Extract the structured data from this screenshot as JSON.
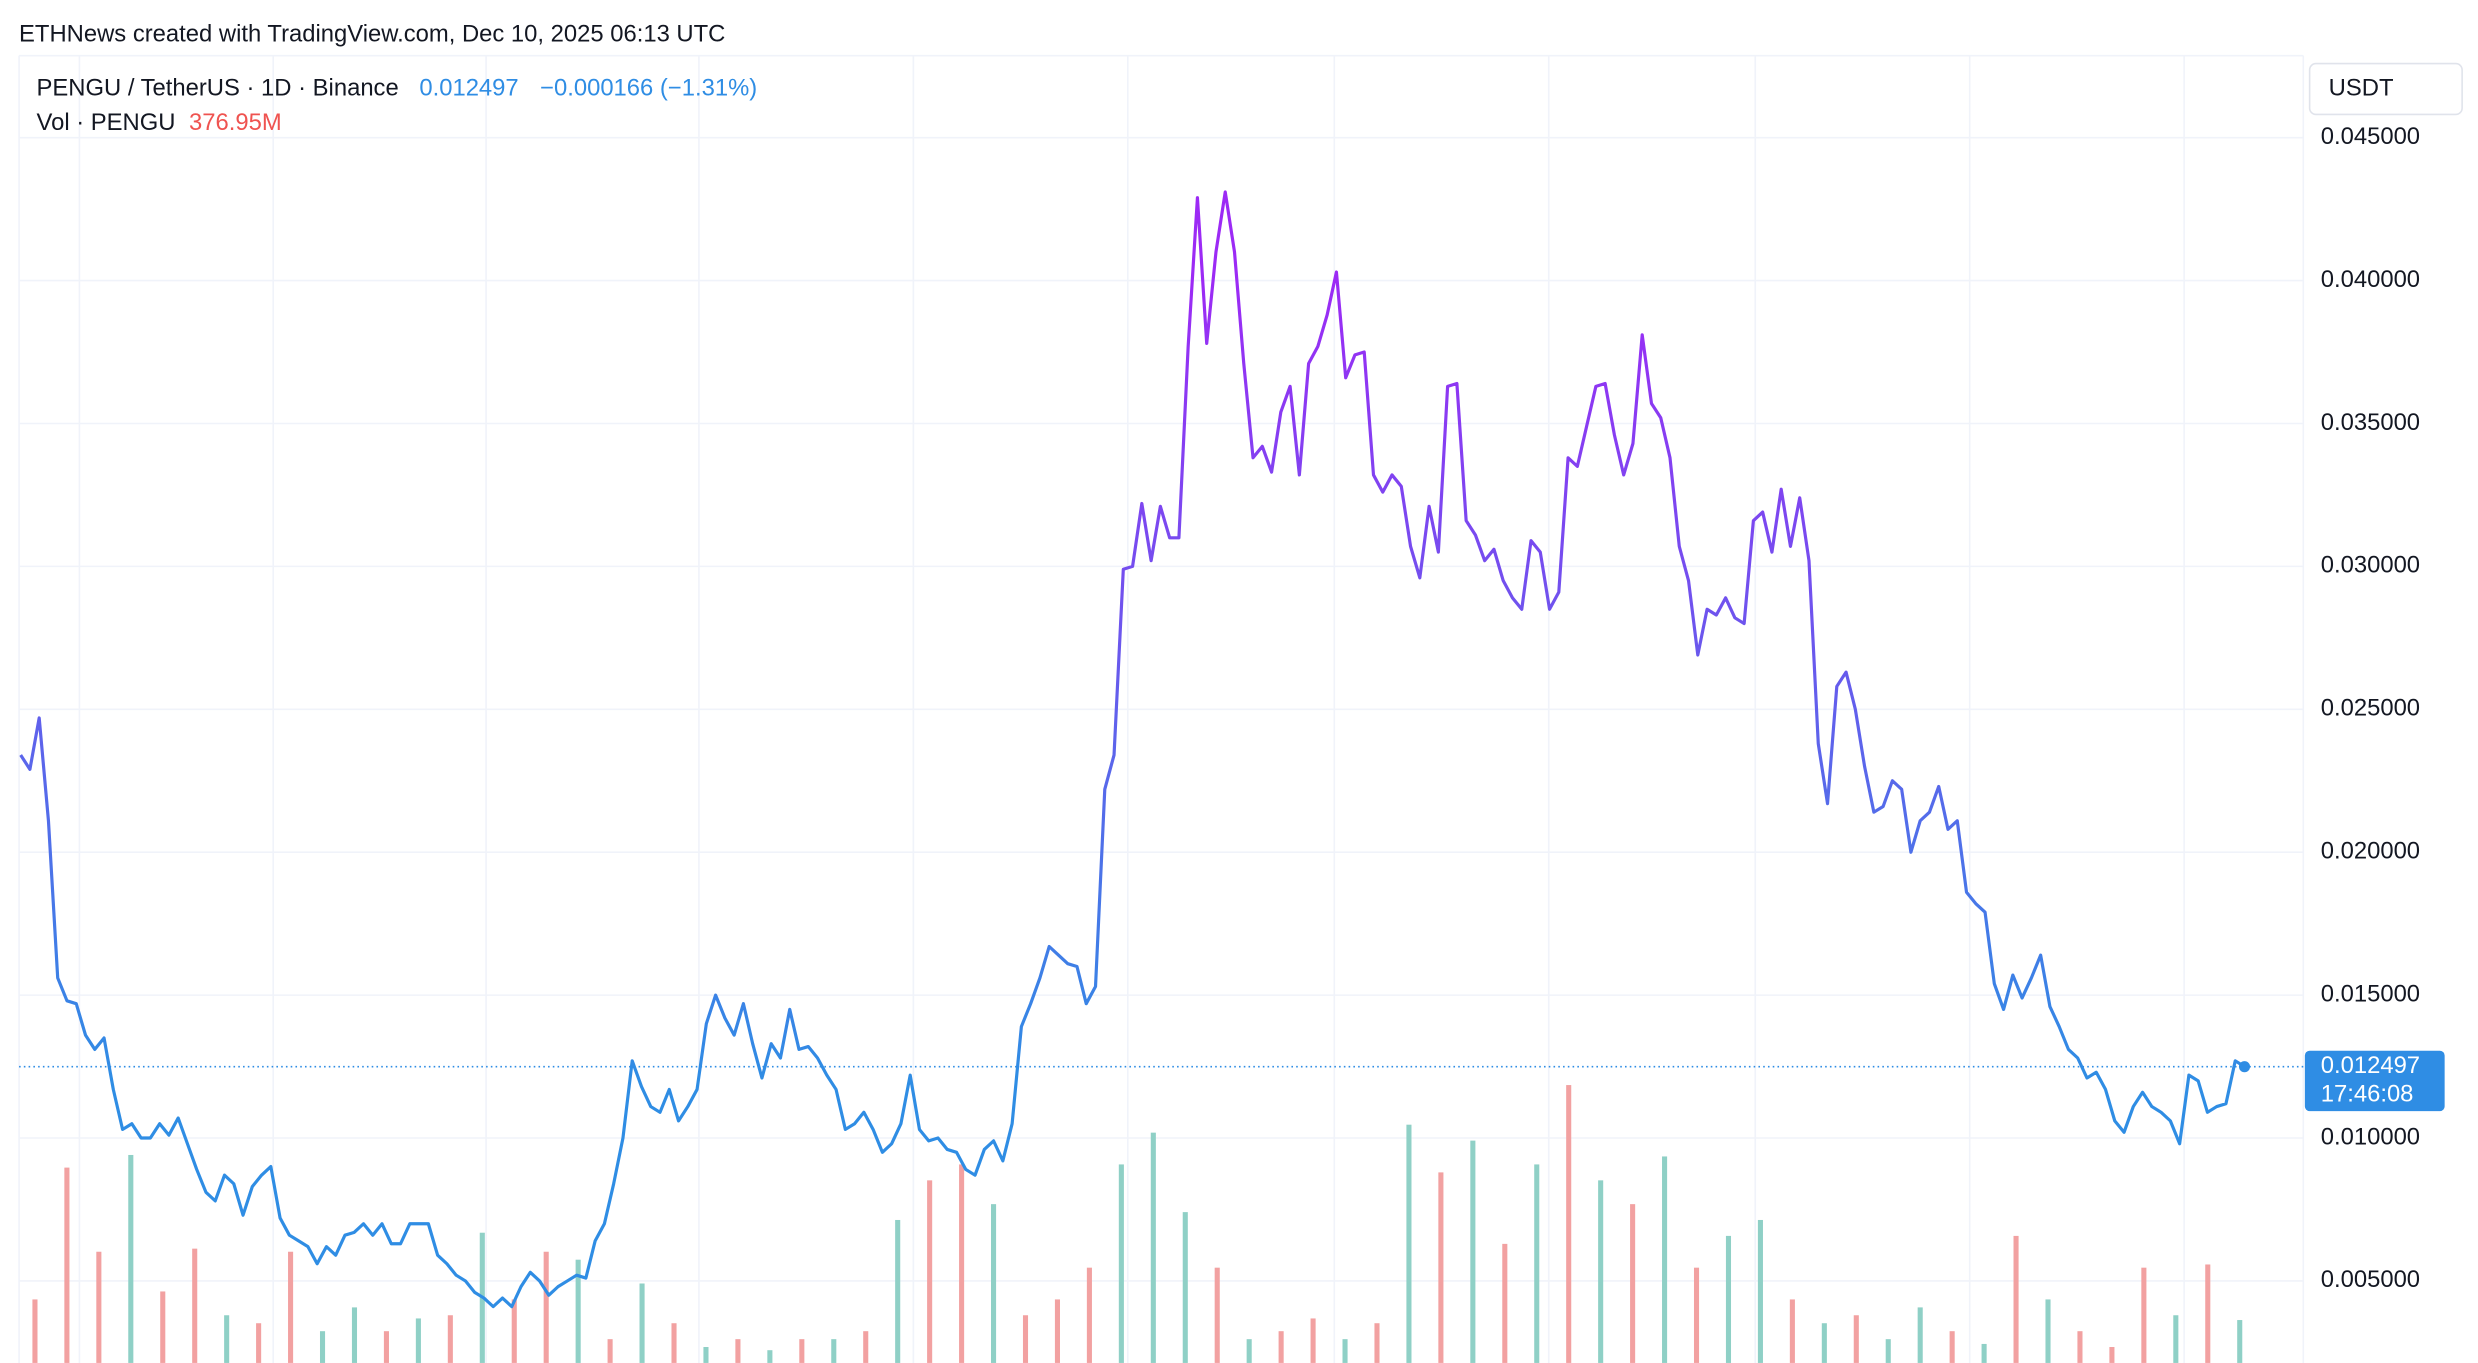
{
  "chart_data": {
    "type": "line",
    "credit": "ETHNews created with TradingView.com, Dec 10, 2025 06:13 UTC",
    "symbol": "PENGU / TetherUS · 1D · Binance",
    "last_price_label": "0.012497",
    "change_label": "−0.000166 (−1.31%)",
    "volume_title": "Vol · PENGU",
    "volume_label": "376.95M",
    "currency": "USDT",
    "countdown": "17:46:08",
    "line_colors": [
      "#2f8de4",
      "#9c2af5"
    ],
    "up_color": "#8fd0c6",
    "down_color": "#f2a1a1",
    "grid": true,
    "ylim": [
      0.00213,
      0.04787
    ],
    "yticks": [
      {
        "value": 0.005,
        "label": "0.005000"
      },
      {
        "value": 0.01,
        "label": "0.010000"
      },
      {
        "value": 0.015,
        "label": "0.015000"
      },
      {
        "value": 0.02,
        "label": "0.020000"
      },
      {
        "value": 0.025,
        "label": "0.025000"
      },
      {
        "value": 0.03,
        "label": "0.030000"
      },
      {
        "value": 0.035,
        "label": "0.035000"
      },
      {
        "value": 0.04,
        "label": "0.040000"
      },
      {
        "value": 0.045,
        "label": "0.045000"
      }
    ],
    "series": [
      {
        "name": "PENGU / TetherUS",
        "values": [
          0.0234,
          0.0229,
          0.0247,
          0.0211,
          0.0156,
          0.0148,
          0.0147,
          0.0136,
          0.0131,
          0.0135,
          0.0117,
          0.0103,
          0.0105,
          0.01,
          0.01,
          0.0105,
          0.0101,
          0.0107,
          0.0098,
          0.0089,
          0.0081,
          0.0078,
          0.0087,
          0.0084,
          0.0073,
          0.0083,
          0.0087,
          0.009,
          0.0072,
          0.0066,
          0.0064,
          0.0062,
          0.0056,
          0.0062,
          0.0059,
          0.0066,
          0.0067,
          0.007,
          0.0066,
          0.007,
          0.0063,
          0.0063,
          0.007,
          0.007,
          0.007,
          0.0059,
          0.0056,
          0.0052,
          0.005,
          0.0046,
          0.0044,
          0.0041,
          0.0044,
          0.0041,
          0.0048,
          0.0053,
          0.005,
          0.0045,
          0.0048,
          0.005,
          0.0052,
          0.0051,
          0.0064,
          0.007,
          0.0084,
          0.01,
          0.0127,
          0.0118,
          0.0111,
          0.0109,
          0.0117,
          0.0106,
          0.0111,
          0.0117,
          0.014,
          0.015,
          0.0142,
          0.0136,
          0.0147,
          0.0133,
          0.0121,
          0.0133,
          0.0128,
          0.0145,
          0.0131,
          0.0132,
          0.0128,
          0.0122,
          0.0117,
          0.0103,
          0.0105,
          0.0109,
          0.0103,
          0.0095,
          0.0098,
          0.0105,
          0.0122,
          0.0103,
          0.0099,
          0.01,
          0.0096,
          0.0095,
          0.0089,
          0.0087,
          0.0096,
          0.0099,
          0.0092,
          0.0105,
          0.0139,
          0.0147,
          0.0156,
          0.0167,
          0.0164,
          0.0161,
          0.016,
          0.0147,
          0.0153,
          0.0222,
          0.0234,
          0.0299,
          0.03,
          0.0322,
          0.0302,
          0.0321,
          0.031,
          0.031,
          0.0377,
          0.0429,
          0.0378,
          0.041,
          0.0431,
          0.041,
          0.0371,
          0.0338,
          0.0342,
          0.0333,
          0.0354,
          0.0363,
          0.0332,
          0.0371,
          0.0377,
          0.0388,
          0.0403,
          0.0366,
          0.0374,
          0.0375,
          0.0332,
          0.0326,
          0.0332,
          0.0328,
          0.0307,
          0.0296,
          0.0321,
          0.0305,
          0.0363,
          0.0364,
          0.0316,
          0.0311,
          0.0302,
          0.0306,
          0.0295,
          0.0289,
          0.0285,
          0.0309,
          0.0305,
          0.0285,
          0.0291,
          0.0338,
          0.0335,
          0.0349,
          0.0363,
          0.0364,
          0.0346,
          0.0332,
          0.0343,
          0.0381,
          0.0357,
          0.0352,
          0.0338,
          0.0307,
          0.0295,
          0.0269,
          0.0285,
          0.0283,
          0.0289,
          0.0282,
          0.028,
          0.0316,
          0.0319,
          0.0305,
          0.0327,
          0.0307,
          0.0324,
          0.0302,
          0.0238,
          0.0217,
          0.0258,
          0.0263,
          0.025,
          0.023,
          0.0214,
          0.0216,
          0.0225,
          0.0222,
          0.02,
          0.0211,
          0.0214,
          0.0223,
          0.0208,
          0.0211,
          0.0186,
          0.0182,
          0.0179,
          0.0154,
          0.0145,
          0.0157,
          0.0149,
          0.0156,
          0.0164,
          0.0146,
          0.0139,
          0.0131,
          0.0128,
          0.0121,
          0.0123,
          0.0117,
          0.0106,
          0.0102,
          0.0111,
          0.0116,
          0.0111,
          0.0109,
          0.0106,
          0.0098,
          0.0122,
          0.012,
          0.0109,
          0.0111,
          0.0112,
          0.0127,
          0.012497
        ]
      }
    ],
    "volume": {
      "ylim": [
        0,
        3000
      ],
      "values": [
        558,
        1716,
        977,
        1827,
        628,
        1004,
        419,
        349,
        977,
        279,
        488,
        279,
        391,
        419,
        1144,
        558,
        977,
        907,
        209,
        698,
        349,
        140,
        209,
        112,
        209,
        209,
        279,
        1256,
        1604,
        1744,
        1395,
        419,
        558,
        837,
        1744,
        2023,
        1325,
        837,
        209,
        279,
        391,
        209,
        349,
        2093,
        1674,
        1953,
        1046,
        1744,
        2441,
        1604,
        1395,
        1814,
        837,
        1116,
        1256,
        558,
        349,
        419,
        209,
        488,
        279,
        167,
        1116,
        558,
        279,
        140,
        837,
        419,
        865,
        376.95
      ],
      "colors": [
        "down",
        "down",
        "down",
        "up",
        "down",
        "down",
        "up",
        "down",
        "down",
        "up",
        "up",
        "down",
        "up",
        "down",
        "up",
        "down",
        "down",
        "up",
        "down",
        "up",
        "down",
        "up",
        "down",
        "up",
        "down",
        "up",
        "down",
        "up",
        "down",
        "down",
        "up",
        "down",
        "down",
        "down",
        "up",
        "up",
        "up",
        "down",
        "up",
        "down",
        "down",
        "up",
        "down",
        "up",
        "down",
        "up",
        "down",
        "up",
        "down",
        "up",
        "down",
        "up",
        "down",
        "up",
        "up",
        "down",
        "up",
        "down",
        "up",
        "up",
        "down",
        "up",
        "down",
        "up",
        "down",
        "down",
        "down",
        "up",
        "down",
        "up"
      ]
    }
  }
}
